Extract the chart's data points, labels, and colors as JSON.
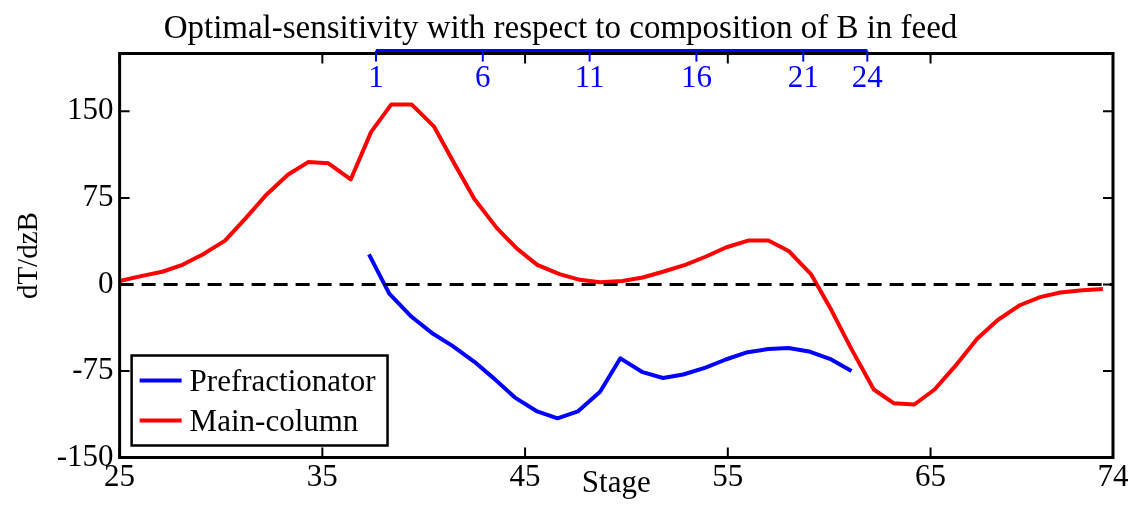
{
  "chart_data": {
    "type": "line",
    "title": "Optimal-sensitivity with respect to composition of B in feed",
    "xlabel": "Stage",
    "ylabel": "dT/dzB",
    "xlim": [
      25,
      74
    ],
    "xticks": [
      25,
      35,
      45,
      55,
      65,
      74
    ],
    "ylim": [
      -150,
      200
    ],
    "yticks": [
      -150,
      -75,
      0,
      75,
      150
    ],
    "x2lim": [
      -11,
      35.5
    ],
    "x2ticks": [
      1,
      6,
      11,
      16,
      21,
      24
    ],
    "series": [
      {
        "name": "Prefractionator",
        "color": "#0000ff",
        "x": [
          37.3,
          38.3,
          39.4,
          40.4,
          41.4,
          42.5,
          43.5,
          44.5,
          45.6,
          46.6,
          47.6,
          48.7,
          49.7,
          50.8,
          51.8,
          52.8,
          53.9,
          54.9,
          55.9,
          57.0,
          58.0,
          59.0,
          60.1,
          61.1
        ],
        "values": [
          26,
          -8,
          -28,
          -42,
          -53,
          -67,
          -82,
          -98,
          -110,
          -116,
          -110,
          -93,
          -64,
          -76,
          -81,
          -78,
          -72,
          -65,
          -59,
          -56,
          -55,
          -58,
          -65,
          -75
        ]
      },
      {
        "name": "Main-column",
        "color": "#ff0000",
        "x": [
          25.0,
          26.0,
          27.1,
          28.1,
          29.1,
          30.2,
          31.2,
          32.2,
          33.3,
          34.3,
          35.3,
          36.4,
          37.4,
          38.4,
          39.4,
          40.5,
          41.5,
          42.5,
          43.6,
          44.6,
          45.6,
          46.7,
          47.7,
          48.7,
          49.8,
          50.8,
          51.8,
          52.9,
          53.9,
          54.9,
          56.0,
          57.0,
          58.0,
          59.1,
          60.1,
          61.1,
          62.2,
          63.2,
          64.2,
          65.2,
          66.3,
          67.3,
          68.3,
          69.4,
          70.4,
          71.4,
          72.5,
          73.5
        ],
        "values": [
          3,
          7,
          11,
          17,
          26,
          38,
          57,
          77,
          95,
          106,
          105,
          91,
          132,
          156,
          156,
          137,
          105,
          74,
          49,
          31,
          17,
          9,
          4,
          2,
          3,
          6,
          11,
          17,
          24,
          32,
          38,
          38,
          29,
          9,
          -22,
          -56,
          -91,
          -103,
          -104,
          -91,
          -69,
          -47,
          -31,
          -18,
          -11,
          -7,
          -5,
          -4
        ]
      }
    ],
    "ref_lines": [
      {
        "axis": "y",
        "value": 0,
        "color": "#000000",
        "line_style": "dashed"
      }
    ],
    "grid": false,
    "legend": "bottom left",
    "marker": "none",
    "line_style": "solid"
  }
}
